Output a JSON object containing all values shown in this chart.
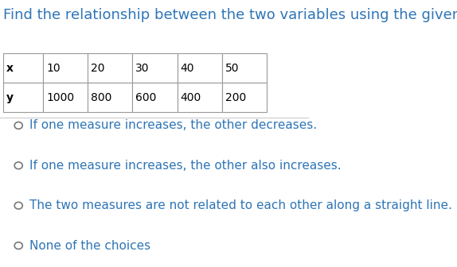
{
  "title": "Find the relationship between the two variables using the given data.",
  "title_color": "#2E75B6",
  "title_fontsize": 13,
  "table_headers": [
    "x",
    "10",
    "20",
    "30",
    "40",
    "50"
  ],
  "table_row": [
    "y",
    "1000",
    "800",
    "600",
    "400",
    "200"
  ],
  "choices": [
    "If one measure increases, the other decreases.",
    "If one measure increases, the other also increases.",
    "The two measures are not related to each other along a straight line.",
    "None of the choices"
  ],
  "choice_color": "#2E75B6",
  "choice_fontsize": 11,
  "background_color": "#ffffff"
}
